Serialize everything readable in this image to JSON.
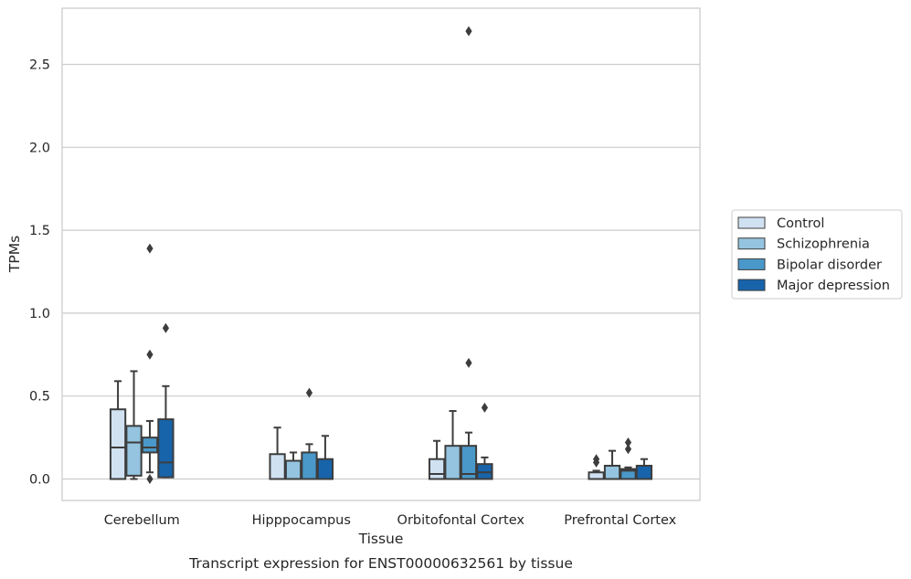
{
  "chart_data": {
    "type": "box",
    "caption": "Transcript expression for ENST00000632561 by tissue",
    "xlabel": "Tissue",
    "ylabel": "TPMs",
    "ylim": [
      -0.13,
      2.85
    ],
    "yticks": [
      0.0,
      0.5,
      1.0,
      1.5,
      2.0,
      2.5
    ],
    "ytick_labels": [
      "0.0",
      "0.5",
      "1.0",
      "1.5",
      "2.0",
      "2.5"
    ],
    "grid": "horizontal",
    "legend_placement": "right",
    "categories": [
      "Cerebellum",
      "Hipppocampus",
      "Orbitofontal Cortex",
      "Prefrontal Cortex"
    ],
    "series": [
      {
        "name": "Control",
        "color": "#d0e1f2",
        "boxes": [
          {
            "q1": 0.0,
            "median": 0.19,
            "q3": 0.42,
            "whisker_low": 0.0,
            "whisker_high": 0.59,
            "outliers": []
          },
          {
            "q1": 0.0,
            "median": 0.0,
            "q3": 0.15,
            "whisker_low": 0.0,
            "whisker_high": 0.31,
            "outliers": []
          },
          {
            "q1": 0.0,
            "median": 0.03,
            "q3": 0.12,
            "whisker_low": 0.0,
            "whisker_high": 0.23,
            "outliers": []
          },
          {
            "q1": 0.0,
            "median": 0.0,
            "q3": 0.04,
            "whisker_low": 0.0,
            "whisker_high": 0.05,
            "outliers": [
              0.1,
              0.12
            ]
          }
        ]
      },
      {
        "name": "Schizophrenia",
        "color": "#94c4df",
        "boxes": [
          {
            "q1": 0.02,
            "median": 0.22,
            "q3": 0.32,
            "whisker_low": 0.0,
            "whisker_high": 0.65,
            "outliers": []
          },
          {
            "q1": 0.0,
            "median": 0.0,
            "q3": 0.11,
            "whisker_low": 0.0,
            "whisker_high": 0.16,
            "outliers": []
          },
          {
            "q1": 0.0,
            "median": 0.0,
            "q3": 0.2,
            "whisker_low": 0.0,
            "whisker_high": 0.41,
            "outliers": []
          },
          {
            "q1": 0.0,
            "median": 0.0,
            "q3": 0.08,
            "whisker_low": 0.0,
            "whisker_high": 0.17,
            "outliers": []
          }
        ]
      },
      {
        "name": "Bipolar disorder",
        "color": "#4a98c9",
        "boxes": [
          {
            "q1": 0.16,
            "median": 0.19,
            "q3": 0.25,
            "whisker_low": 0.04,
            "whisker_high": 0.35,
            "outliers": [
              0.0,
              0.75,
              1.39
            ]
          },
          {
            "q1": 0.0,
            "median": 0.0,
            "q3": 0.16,
            "whisker_low": 0.0,
            "whisker_high": 0.21,
            "outliers": [
              0.52
            ]
          },
          {
            "q1": 0.0,
            "median": 0.03,
            "q3": 0.2,
            "whisker_low": 0.0,
            "whisker_high": 0.28,
            "outliers": [
              0.7,
              2.7
            ]
          },
          {
            "q1": 0.0,
            "median": 0.05,
            "q3": 0.06,
            "whisker_low": 0.0,
            "whisker_high": 0.07,
            "outliers": [
              0.18,
              0.22
            ]
          }
        ]
      },
      {
        "name": "Major depression",
        "color": "#1764ab",
        "boxes": [
          {
            "q1": 0.01,
            "median": 0.1,
            "q3": 0.36,
            "whisker_low": 0.01,
            "whisker_high": 0.56,
            "outliers": [
              0.91
            ]
          },
          {
            "q1": 0.0,
            "median": 0.0,
            "q3": 0.12,
            "whisker_low": 0.0,
            "whisker_high": 0.26,
            "outliers": []
          },
          {
            "q1": 0.0,
            "median": 0.04,
            "q3": 0.09,
            "whisker_low": 0.0,
            "whisker_high": 0.13,
            "outliers": [
              0.43
            ]
          },
          {
            "q1": 0.0,
            "median": 0.0,
            "q3": 0.08,
            "whisker_low": 0.0,
            "whisker_high": 0.12,
            "outliers": []
          }
        ]
      }
    ]
  }
}
